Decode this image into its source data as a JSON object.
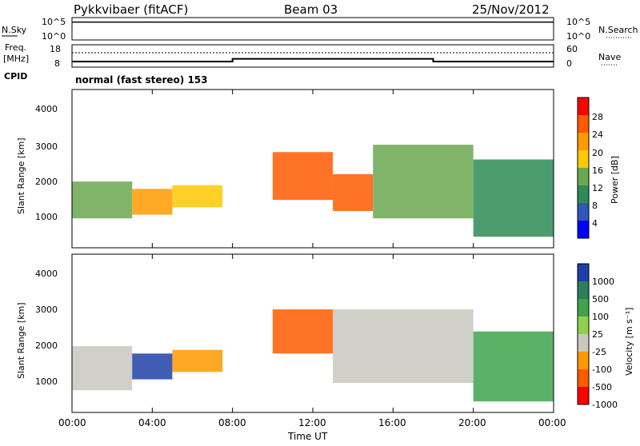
{
  "header": {
    "radar": "Pykkvibaer (fitACF)",
    "beam": "Beam 03",
    "date": "25/Nov/2012"
  },
  "sky_panel": {
    "left_label": "N.Sky",
    "right_label": "N.Search",
    "left_ticks": [
      "10^5",
      "10^0"
    ],
    "right_ticks": [
      "10^5",
      "10^0"
    ]
  },
  "freq_panel": {
    "left_label_line1": "Freq.",
    "left_label_line2": "[MHz]",
    "left_ticks": [
      "18",
      "8"
    ],
    "right_label": "Nave",
    "right_ticks": [
      "60",
      "0"
    ]
  },
  "cpid": {
    "label": "CPID",
    "value": "normal (fast stereo) 153"
  },
  "power_panel": {
    "ylabel": "Slant Range [km]",
    "yticks": [
      "4000",
      "3000",
      "2000",
      "1000"
    ],
    "colorbar_label": "Power [dB]",
    "colorbar_ticks": [
      "28",
      "24",
      "20",
      "16",
      "12",
      "8",
      "4"
    ],
    "colorbar_colors": [
      "#ff0000",
      "#ff5a00",
      "#ff9a00",
      "#ffc800",
      "#6aa84f",
      "#2e8b57",
      "#2f57b5",
      "#0000ff"
    ]
  },
  "velocity_panel": {
    "ylabel": "Slant Range [km]",
    "yticks": [
      "4000",
      "3000",
      "2000",
      "1000"
    ],
    "colorbar_label": "Velocity [m s⁻¹]",
    "colorbar_ticks": [
      "1000",
      "500",
      "100",
      "25",
      "-25",
      "-100",
      "-500",
      "-1000"
    ],
    "colorbar_colors": [
      "#1f3fa8",
      "#2e7d5b",
      "#3fa34d",
      "#8fd14f",
      "#c8c8c0",
      "#ff9900",
      "#ff5a00",
      "#ff0000"
    ]
  },
  "xaxis": {
    "label": "Time UT",
    "ticks": [
      "00:00",
      "04:00",
      "08:00",
      "12:00",
      "16:00",
      "20:00",
      "00:00"
    ]
  },
  "chart_data": [
    {
      "type": "line",
      "title": "N.Sky / N.Search",
      "x_unit": "hours UT",
      "y_scale": "log",
      "ylim": [
        "10^0",
        "10^5"
      ],
      "series": [
        {
          "name": "N.Sky",
          "x": [
            0,
            4,
            8,
            12,
            16,
            18,
            20,
            24
          ],
          "values": [
            "10^4",
            "10^4",
            "10^4",
            "10^4",
            "10^4",
            "10^4",
            "10^4",
            "10^4"
          ]
        }
      ]
    },
    {
      "type": "line",
      "title": "Freq. / Nave",
      "x_unit": "hours UT",
      "ylim_left": [
        8,
        18
      ],
      "ylim_right": [
        0,
        60
      ],
      "series": [
        {
          "name": "Freq.",
          "x": [
            0,
            8,
            8,
            18,
            18,
            24
          ],
          "values": [
            10.5,
            10.5,
            11.7,
            11.7,
            10.5,
            10.5
          ]
        }
      ]
    },
    {
      "type": "heatmap",
      "title": "Power [dB]",
      "x_unit": "hours UT",
      "xlim": [
        0,
        24
      ],
      "ylim": [
        200,
        4500
      ],
      "color_scale": [
        4,
        8,
        12,
        16,
        20,
        24,
        28
      ],
      "echo_regions": [
        {
          "t_start": 0,
          "t_end": 3,
          "range_low": 1000,
          "range_high": 2000,
          "power_db": 12
        },
        {
          "t_start": 3,
          "t_end": 5,
          "range_low": 1100,
          "range_high": 1800,
          "power_db": 20
        },
        {
          "t_start": 5,
          "t_end": 7.5,
          "range_low": 1300,
          "range_high": 1900,
          "power_db": 18
        },
        {
          "t_start": 10,
          "t_end": 13,
          "range_low": 1500,
          "range_high": 2800,
          "power_db": 26
        },
        {
          "t_start": 13,
          "t_end": 15,
          "range_low": 1200,
          "range_high": 2200,
          "power_db": 24
        },
        {
          "t_start": 15,
          "t_end": 20,
          "range_low": 1000,
          "range_high": 3000,
          "power_db": 14
        },
        {
          "t_start": 20,
          "t_end": 24,
          "range_low": 500,
          "range_high": 2600,
          "power_db": 10
        }
      ]
    },
    {
      "type": "heatmap",
      "title": "Velocity [m s⁻¹]",
      "x_unit": "hours UT",
      "xlim": [
        0,
        24
      ],
      "ylim": [
        200,
        4500
      ],
      "color_scale": [
        -1000,
        -500,
        -100,
        -25,
        25,
        100,
        500,
        1000
      ],
      "echo_regions": [
        {
          "t_start": 0,
          "t_end": 3,
          "range_low": 800,
          "range_high": 2000,
          "velocity": 0
        },
        {
          "t_start": 3,
          "t_end": 5,
          "range_low": 1100,
          "range_high": 1800,
          "velocity": 800
        },
        {
          "t_start": 5,
          "t_end": 7.5,
          "range_low": 1300,
          "range_high": 1900,
          "velocity": -300
        },
        {
          "t_start": 10,
          "t_end": 13,
          "range_low": 1800,
          "range_high": 3000,
          "velocity": -400
        },
        {
          "t_start": 13,
          "t_end": 20,
          "range_low": 1000,
          "range_high": 3000,
          "velocity": 0
        },
        {
          "t_start": 20,
          "t_end": 24,
          "range_low": 500,
          "range_high": 2400,
          "velocity": 200
        }
      ]
    }
  ]
}
